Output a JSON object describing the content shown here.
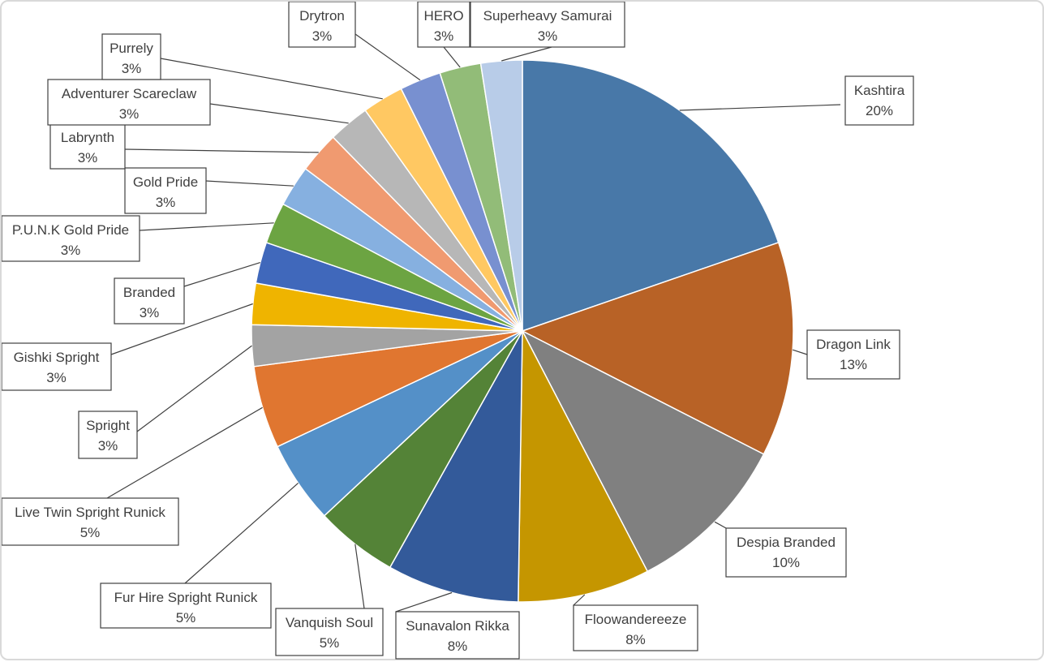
{
  "chart_data": {
    "type": "pie",
    "title": "",
    "slices": [
      {
        "name": "Kashtira",
        "value": 20,
        "label": "20%",
        "color": "#4878a8"
      },
      {
        "name": "Dragon Link",
        "value": 13,
        "label": "13%",
        "color": "#b86226"
      },
      {
        "name": "Despia Branded",
        "value": 10,
        "label": "10%",
        "color": "#808080"
      },
      {
        "name": "Floowandereeze",
        "value": 8,
        "label": "8%",
        "color": "#c59600"
      },
      {
        "name": "Sunavalon Rikka",
        "value": 8,
        "label": "8%",
        "color": "#335a9a"
      },
      {
        "name": "Vanquish Soul",
        "value": 5,
        "label": "5%",
        "color": "#548337"
      },
      {
        "name": "Fur Hire Spright Runick",
        "value": 5,
        "label": "5%",
        "color": "#5490c8"
      },
      {
        "name": "Live Twin Spright Runick",
        "value": 5,
        "label": "5%",
        "color": "#e07630"
      },
      {
        "name": "Spright",
        "value": 2.5,
        "label": "3%",
        "color": "#a3a3a3"
      },
      {
        "name": "Gishki Spright",
        "value": 2.5,
        "label": "3%",
        "color": "#efb400"
      },
      {
        "name": "Branded",
        "value": 2.5,
        "label": "3%",
        "color": "#4068bb"
      },
      {
        "name": "P.U.N.K Gold Pride",
        "value": 2.5,
        "label": "3%",
        "color": "#6ca442"
      },
      {
        "name": "Gold Pride",
        "value": 2.5,
        "label": "3%",
        "color": "#86b0e0"
      },
      {
        "name": "Labrynth",
        "value": 2.5,
        "label": "3%",
        "color": "#f09a70"
      },
      {
        "name": "Adventurer Scareclaw",
        "value": 2.5,
        "label": "3%",
        "color": "#b7b7b7"
      },
      {
        "name": "Purrely",
        "value": 2.5,
        "label": "3%",
        "color": "#ffc862"
      },
      {
        "name": "Drytron",
        "value": 2.5,
        "label": "3%",
        "color": "#7890d0"
      },
      {
        "name": "HERO",
        "value": 2.5,
        "label": "3%",
        "color": "#92bc78"
      },
      {
        "name": "Superheavy Samurai",
        "value": 2.5,
        "label": "3%",
        "color": "#b8cce8"
      }
    ],
    "legend": "none",
    "data_labels": "category name and percentage, outside with leader lines"
  }
}
